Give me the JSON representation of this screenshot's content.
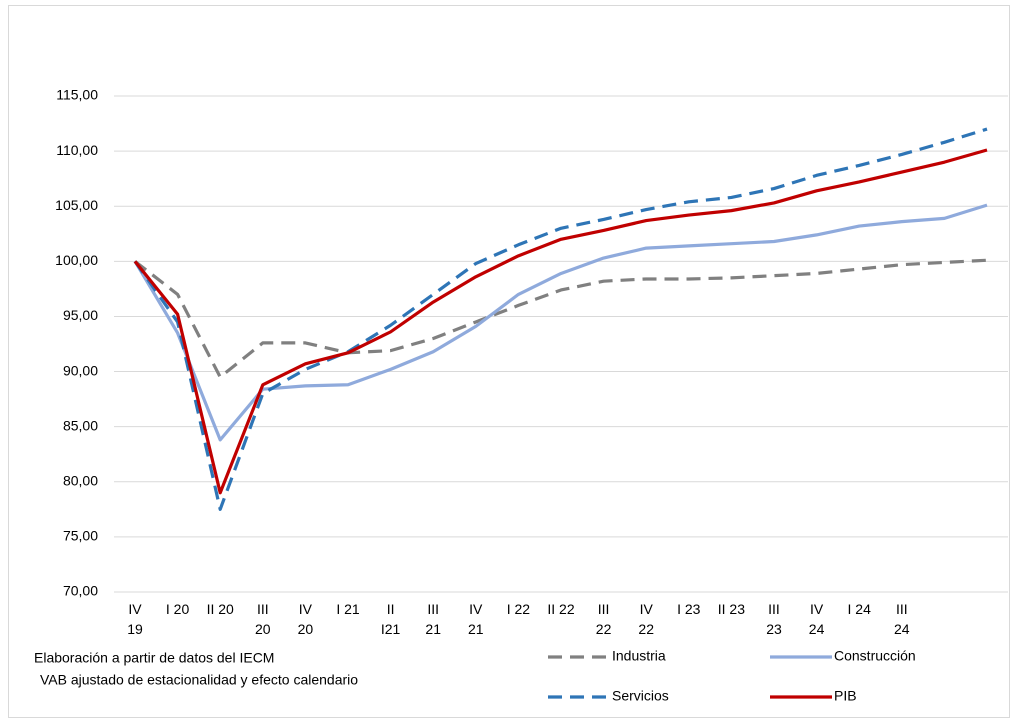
{
  "chart_data": {
    "type": "line",
    "categories": [
      "IV\n19",
      "I 20",
      "II 20",
      "III\n20",
      "IV\n20",
      "I 21",
      "II\nI21",
      "III\n21",
      "IV\n21",
      "I 22",
      "II 22",
      "III\n22",
      "IV\n22",
      "I 23",
      "II 23",
      "III\n23",
      "IV\n24",
      "I 24",
      "III\n24",
      null,
      null
    ],
    "series": [
      {
        "name": "Industria",
        "color": "#808080",
        "dash": "dashed",
        "values": [
          100,
          97,
          89.5,
          92.6,
          92.6,
          91.7,
          91.9,
          93,
          94.5,
          96,
          97.4,
          98.2,
          98.4,
          98.4,
          98.5,
          98.7,
          98.9,
          99.3,
          99.7,
          99.9,
          100.1
        ]
      },
      {
        "name": "Construcción",
        "color": "#8faadc",
        "dash": "solid",
        "values": [
          100,
          93.5,
          83.8,
          88.4,
          88.7,
          88.8,
          90.2,
          91.8,
          94.1,
          97,
          98.9,
          100.3,
          101.2,
          101.4,
          101.6,
          101.8,
          102.4,
          103.2,
          103.6,
          103.9,
          105.1
        ]
      },
      {
        "name": "Servicios",
        "color": "#2e75b6",
        "dash": "dashed",
        "values": [
          100,
          94.5,
          77.5,
          88,
          90.2,
          91.8,
          94.2,
          97,
          99.8,
          101.5,
          103,
          103.8,
          104.7,
          105.4,
          105.8,
          106.6,
          107.8,
          108.7,
          109.7,
          110.8,
          112
        ]
      },
      {
        "name": "PIB",
        "color": "#c00000",
        "dash": "solid",
        "values": [
          100,
          95.2,
          79,
          88.8,
          90.7,
          91.7,
          93.6,
          96.3,
          98.6,
          100.5,
          102,
          102.8,
          103.7,
          104.2,
          104.6,
          105.3,
          106.4,
          107.2,
          108.1,
          109,
          110.1
        ]
      }
    ],
    "ylim": [
      70,
      115
    ],
    "yticks": [
      {
        "value": 70,
        "label": "70,00"
      },
      {
        "value": 75,
        "label": "75,00"
      },
      {
        "value": 80,
        "label": "80,00"
      },
      {
        "value": 85,
        "label": "85,00"
      },
      {
        "value": 90,
        "label": "90,00"
      },
      {
        "value": 95,
        "label": "95,00"
      },
      {
        "value": 100,
        "label": "100,00"
      },
      {
        "value": 105,
        "label": "105,00"
      },
      {
        "value": 110,
        "label": "110,00"
      },
      {
        "value": 115,
        "label": "115,00"
      }
    ],
    "grid": true,
    "annotations": [
      "Elaboración a partir de datos del IECM",
      "VAB ajustado de estacionalidad y efecto calendario"
    ]
  }
}
